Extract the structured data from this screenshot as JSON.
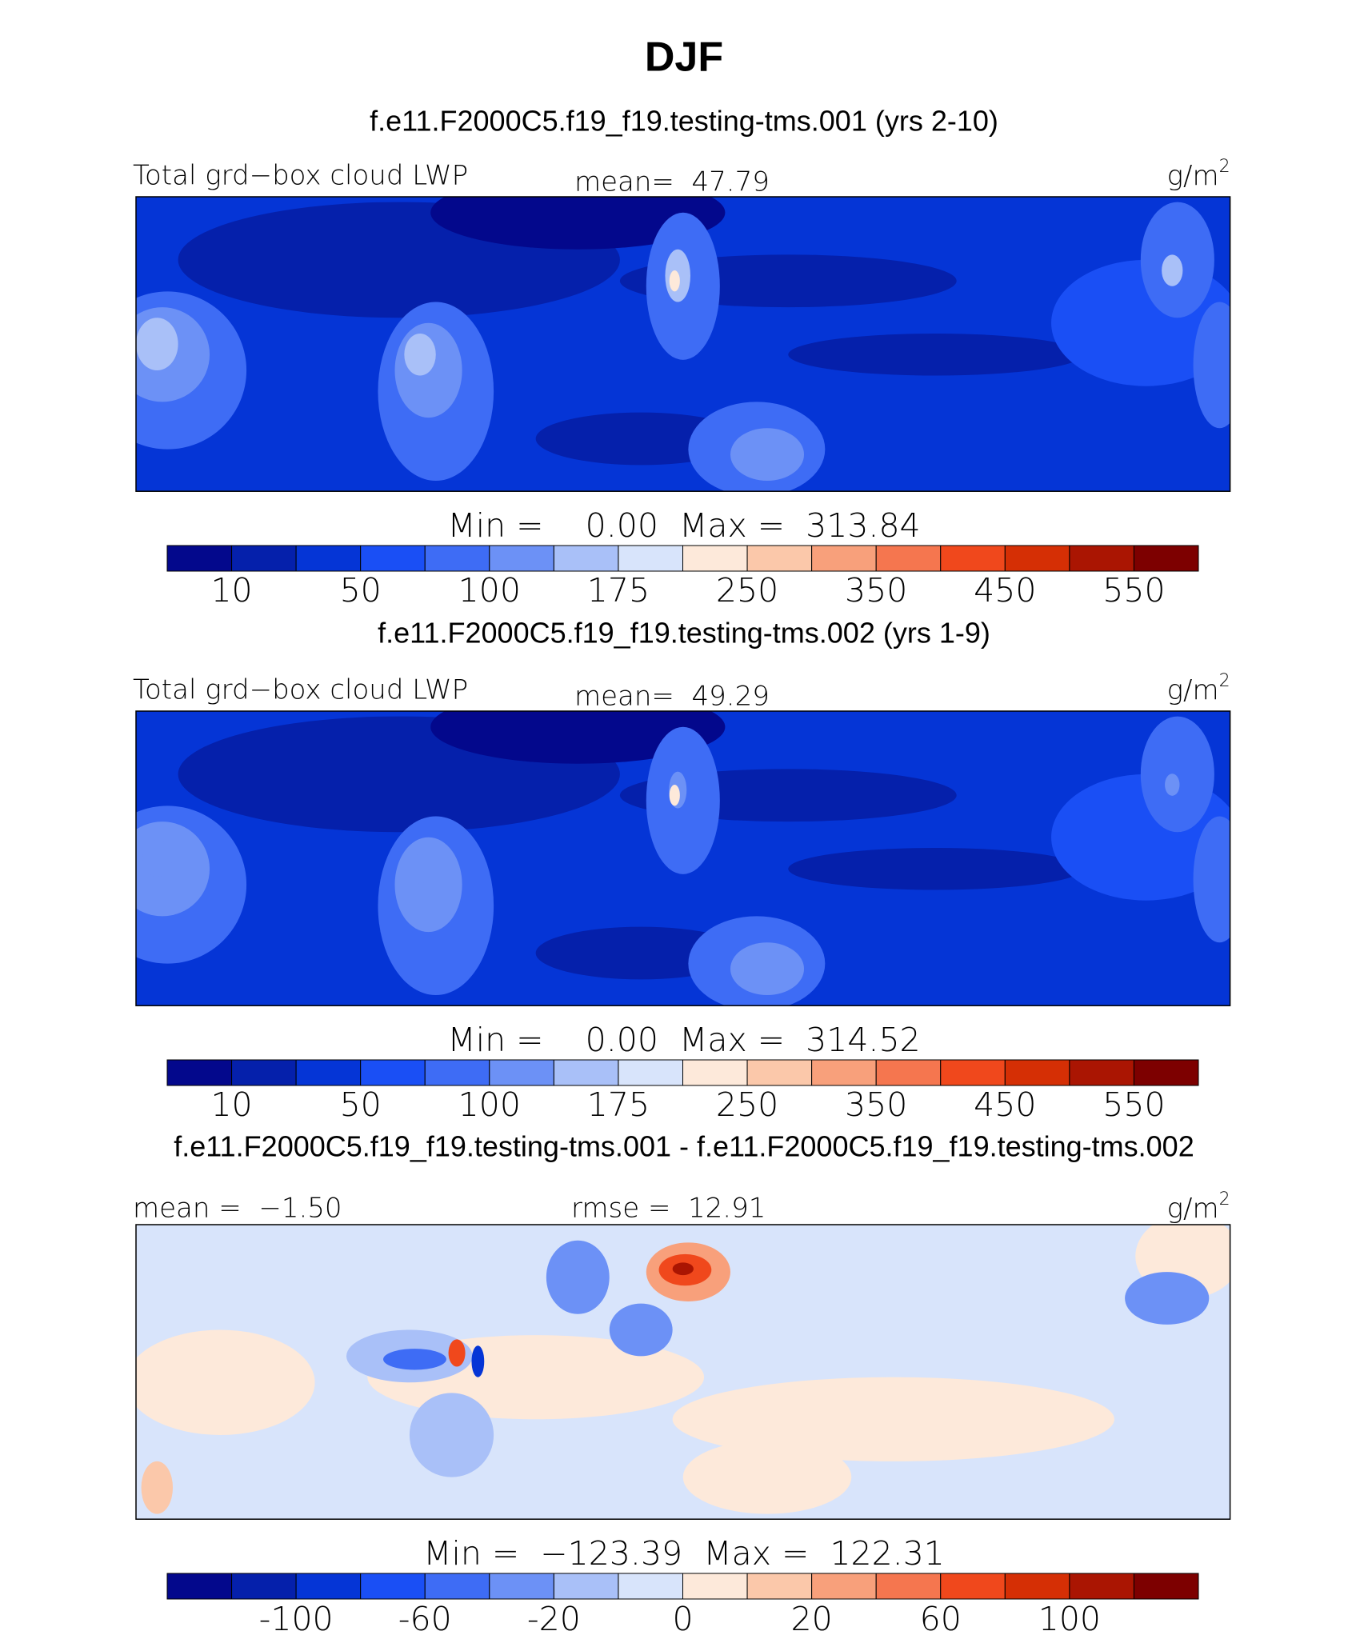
{
  "title": "DJF",
  "panels": [
    {
      "subtitle": "f.e11.F2000C5.f19_f19.testing-tms.001 (yrs 2-10)",
      "left_label": "Total grd−box cloud LWP",
      "center_label": "mean=  47.79",
      "units": "g/m",
      "units_sup": "2",
      "minmax": "Min =    0.00  Max =  313.84",
      "colorbar": {
        "colors": [
          "#03088c",
          "#0520ab",
          "#0535d6",
          "#1a4ff5",
          "#3e6cf5",
          "#6c91f6",
          "#a9c0f8",
          "#d8e4fb",
          "#fde9da",
          "#fbc8aa",
          "#f8a07b",
          "#f5764f",
          "#f0481c",
          "#d52f05",
          "#aa1502",
          "#7d0000"
        ],
        "labels": [
          10,
          null,
          50,
          null,
          100,
          null,
          175,
          null,
          250,
          null,
          350,
          null,
          450,
          null,
          550
        ]
      }
    },
    {
      "subtitle": "f.e11.F2000C5.f19_f19.testing-tms.002 (yrs 1-9)",
      "left_label": "Total grd−box cloud LWP",
      "center_label": "mean=  49.29",
      "units": "g/m",
      "units_sup": "2",
      "minmax": "Min =    0.00  Max =  314.52",
      "colorbar": {
        "colors": [
          "#03088c",
          "#0520ab",
          "#0535d6",
          "#1a4ff5",
          "#3e6cf5",
          "#6c91f6",
          "#a9c0f8",
          "#d8e4fb",
          "#fde9da",
          "#fbc8aa",
          "#f8a07b",
          "#f5764f",
          "#f0481c",
          "#d52f05",
          "#aa1502",
          "#7d0000"
        ],
        "labels": [
          10,
          null,
          50,
          null,
          100,
          null,
          175,
          null,
          250,
          null,
          350,
          null,
          450,
          null,
          550
        ]
      }
    },
    {
      "subtitle": "f.e11.F2000C5.f19_f19.testing-tms.001 - f.e11.F2000C5.f19_f19.testing-tms.002",
      "left_label": "mean =  −1.50",
      "center_label": "rmse =  12.91",
      "units": "g/m",
      "units_sup": "2",
      "minmax": "Min =  −123.39  Max =  122.31",
      "colorbar": {
        "colors": [
          "#03088c",
          "#0520ab",
          "#0535d6",
          "#1a4ff5",
          "#3e6cf5",
          "#6c91f6",
          "#a9c0f8",
          "#d8e4fb",
          "#fde9da",
          "#fbc8aa",
          "#f8a07b",
          "#f5764f",
          "#f0481c",
          "#d52f05",
          "#aa1502",
          "#7d0000"
        ],
        "labels": [
          null,
          -100,
          null,
          -60,
          null,
          -20,
          null,
          0,
          null,
          20,
          null,
          60,
          null,
          100,
          null
        ]
      }
    }
  ]
}
